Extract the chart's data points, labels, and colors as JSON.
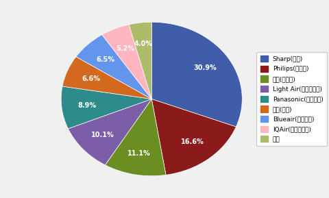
{
  "labels": [
    "Sharp(샤프)",
    "Philips(필립스)",
    "小米(샤오미)",
    "Light Air(라이트에어)",
    "Panasonic(파나소닉)",
    "亚都(야두)",
    "Blueair(블루에어)",
    "IQAir(아이큐에어)",
    "삼성"
  ],
  "values": [
    21.4,
    11.5,
    7.7,
    7.0,
    6.2,
    4.6,
    4.5,
    3.6,
    2.8
  ],
  "colors": [
    "#3F5DA8",
    "#8B1A1A",
    "#6B8E23",
    "#7B5EA7",
    "#2E8B8B",
    "#D2691E",
    "#6495ED",
    "#FFB6C1",
    "#ADBC6A"
  ],
  "pctdistance": 0.72,
  "startangle": 90,
  "background_color": "#F0F0F0",
  "figure_background": "#F0F0F0"
}
